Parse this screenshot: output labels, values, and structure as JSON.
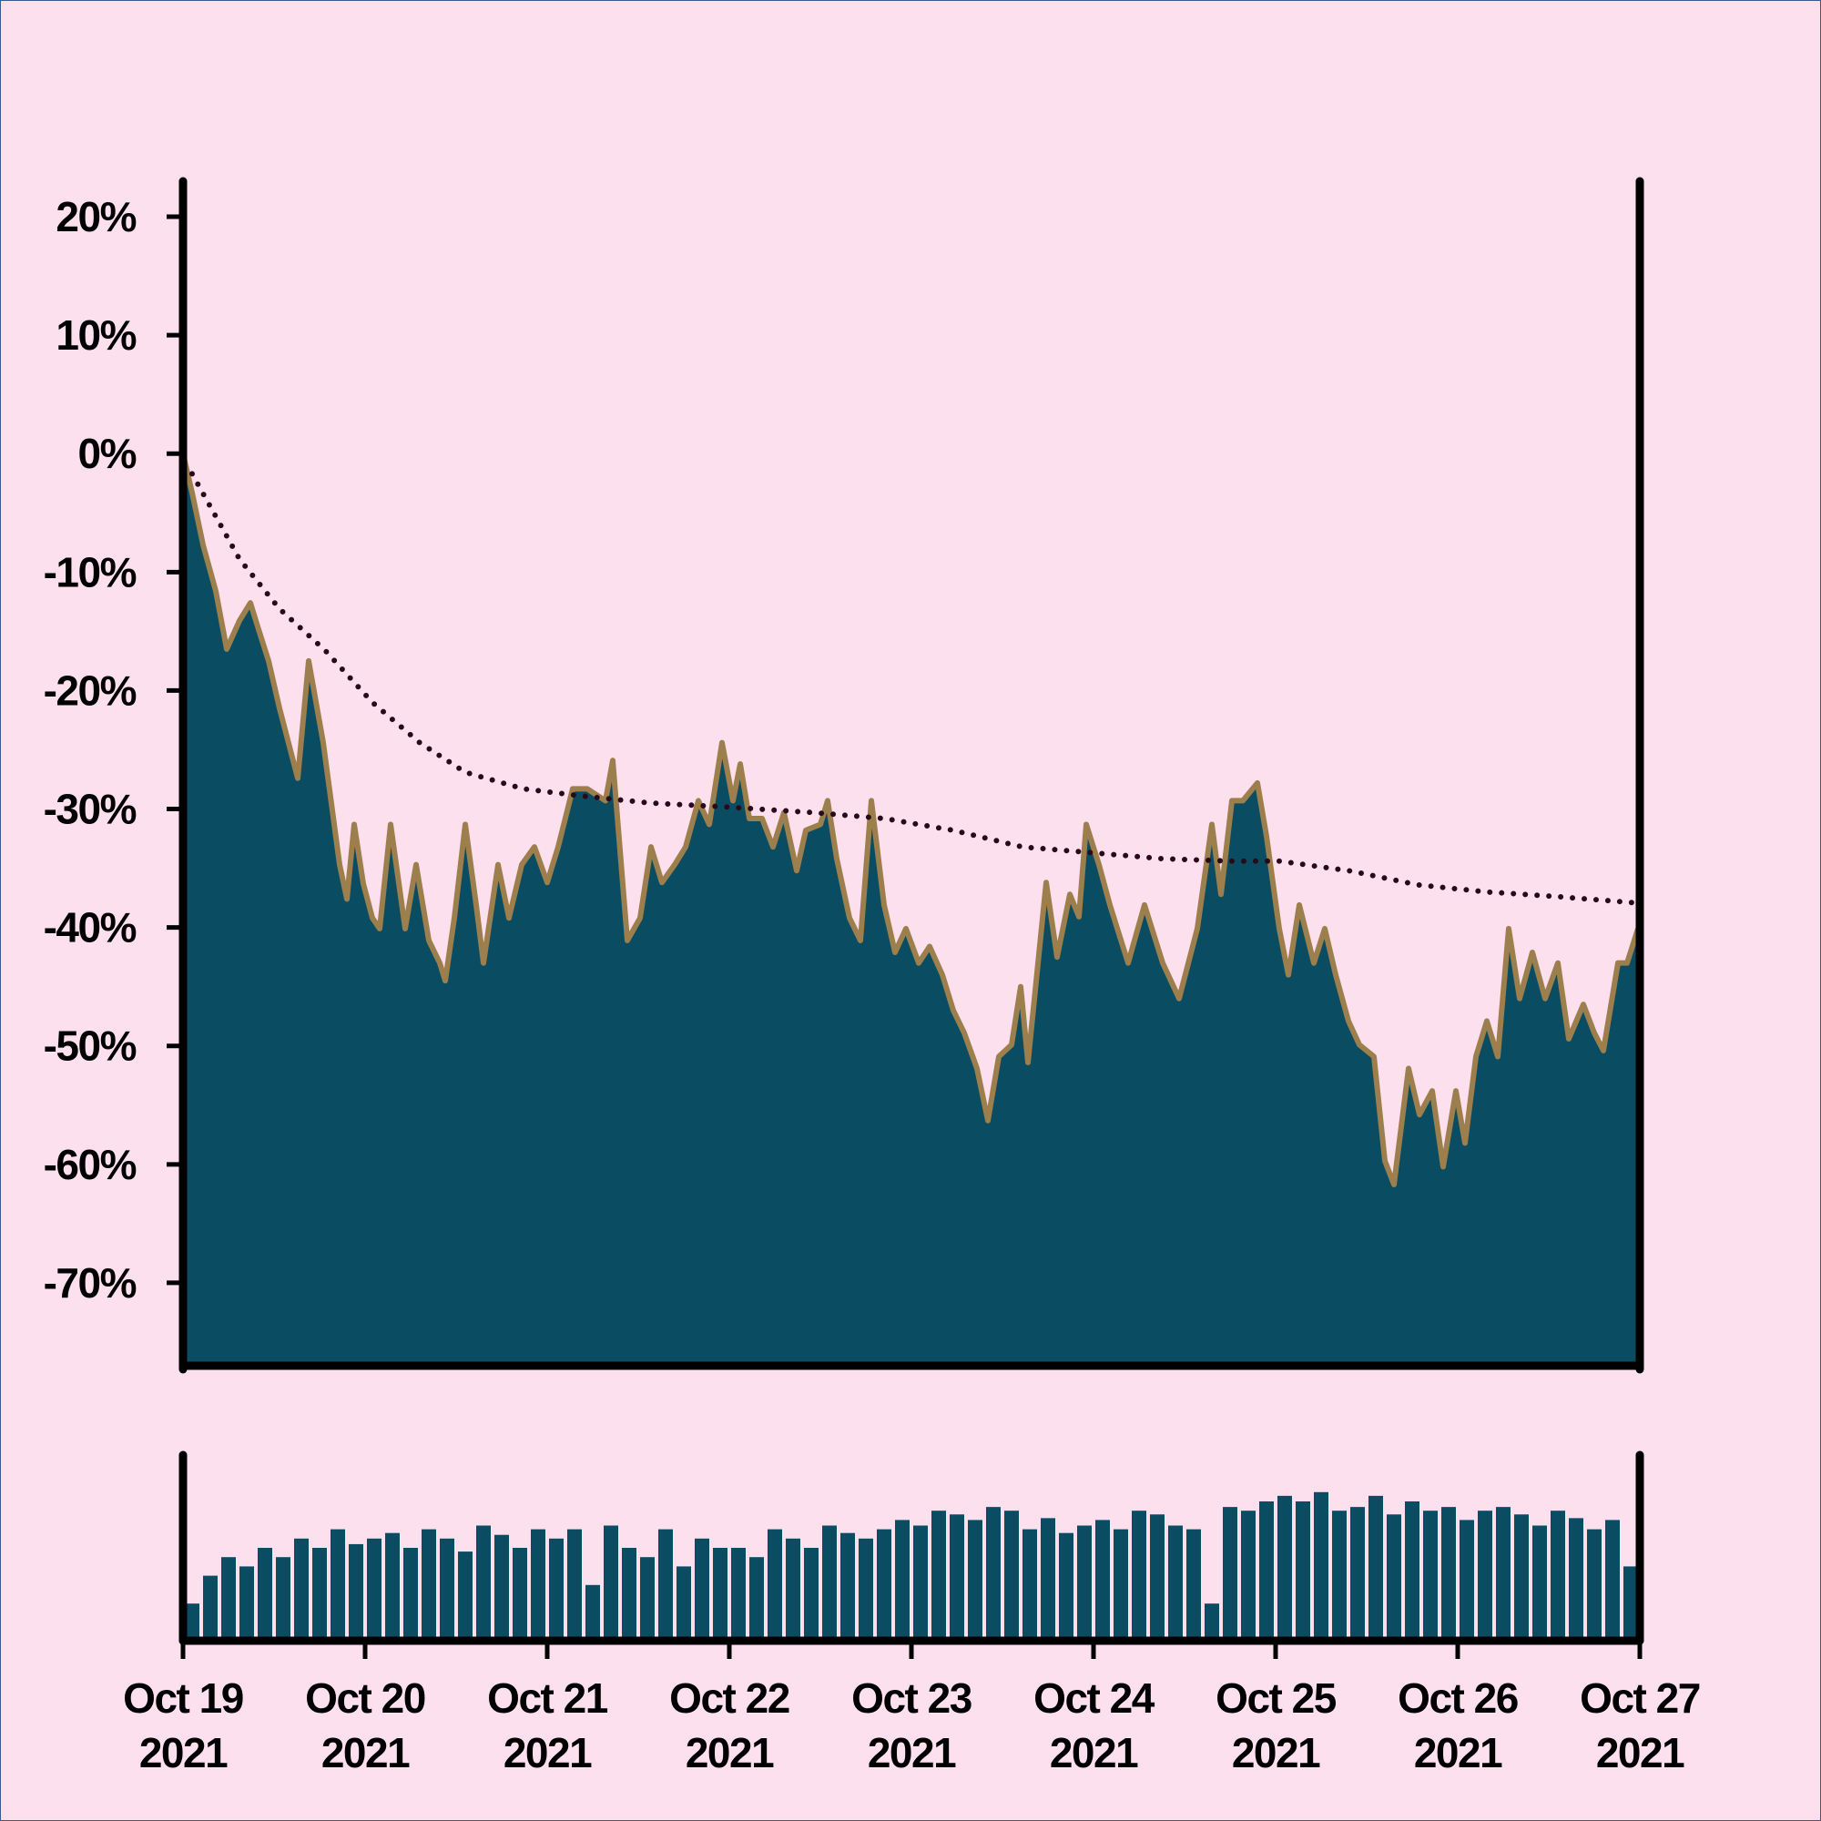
{
  "chart_data": [
    {
      "type": "area",
      "xlim": [
        0,
        8
      ],
      "ylim": [
        -77,
        23
      ],
      "yticks": [
        {
          "value": -70,
          "label": "-70%"
        },
        {
          "value": -60,
          "label": "-60%"
        },
        {
          "value": -50,
          "label": "-50%"
        },
        {
          "value": -40,
          "label": "-40%"
        },
        {
          "value": -30,
          "label": "-30%"
        },
        {
          "value": -20,
          "label": "-20%"
        },
        {
          "value": -10,
          "label": "-10%"
        },
        {
          "value": 0,
          "label": "0%"
        },
        {
          "value": 10,
          "label": "10%"
        },
        {
          "value": 20,
          "label": "20%"
        }
      ],
      "series": [
        {
          "type": "area",
          "color": "#0a4d63",
          "line_color": "#9c7f4c",
          "x": [
            0,
            0.05,
            0.11,
            0.18,
            0.24,
            0.31,
            0.37,
            0.41,
            0.47,
            0.53,
            0.63,
            0.69,
            0.77,
            0.86,
            0.9,
            0.94,
            0.99,
            1.04,
            1.08,
            1.14,
            1.22,
            1.28,
            1.35,
            1.41,
            1.44,
            1.49,
            1.55,
            1.61,
            1.65,
            1.73,
            1.79,
            1.86,
            1.93,
            2.0,
            2.06,
            2.14,
            2.22,
            2.32,
            2.36,
            2.44,
            2.51,
            2.57,
            2.63,
            2.7,
            2.76,
            2.83,
            2.89,
            2.96,
            3.02,
            3.06,
            3.11,
            3.18,
            3.24,
            3.3,
            3.37,
            3.42,
            3.5,
            3.54,
            3.59,
            3.66,
            3.72,
            3.78,
            3.85,
            3.91,
            3.97,
            4.04,
            4.1,
            4.17,
            4.23,
            4.29,
            4.36,
            4.42,
            4.48,
            4.55,
            4.6,
            4.64,
            4.74,
            4.8,
            4.87,
            4.92,
            4.96,
            5.03,
            5.09,
            5.19,
            5.28,
            5.38,
            5.47,
            5.57,
            5.65,
            5.7,
            5.76,
            5.82,
            5.9,
            5.95,
            6.02,
            6.07,
            6.13,
            6.21,
            6.27,
            6.33,
            6.4,
            6.46,
            6.54,
            6.6,
            6.65,
            6.73,
            6.79,
            6.86,
            6.92,
            6.99,
            7.04,
            7.1,
            7.16,
            7.22,
            7.28,
            7.34,
            7.41,
            7.48,
            7.55,
            7.61,
            7.69,
            7.75,
            7.8,
            7.88,
            7.93,
            7.99
          ],
          "values": [
            0,
            -3.3,
            -7.7,
            -11.6,
            -16.5,
            -14.1,
            -12.6,
            -14.6,
            -17.5,
            -21.5,
            -27.4,
            -17.5,
            -24.4,
            -34.7,
            -37.6,
            -31.3,
            -36.3,
            -39.2,
            -40.1,
            -31.3,
            -40.1,
            -34.7,
            -41.1,
            -43,
            -44.5,
            -39.2,
            -31.3,
            -38.1,
            -43,
            -34.7,
            -39.2,
            -34.7,
            -33.2,
            -36.2,
            -33.2,
            -28.3,
            -28.3,
            -29.3,
            -25.9,
            -41.1,
            -39.2,
            -33.2,
            -36.2,
            -34.7,
            -33.2,
            -29.3,
            -31.3,
            -24.4,
            -29.3,
            -26.2,
            -30.8,
            -30.8,
            -33.2,
            -30.3,
            -35.2,
            -31.8,
            -31.3,
            -29.3,
            -34.2,
            -39.2,
            -41.1,
            -29.3,
            -38.1,
            -42.1,
            -40.1,
            -43,
            -41.6,
            -44,
            -47,
            -48.9,
            -51.9,
            -56.3,
            -50.9,
            -49.9,
            -45,
            -51.4,
            -36.2,
            -42.5,
            -37.2,
            -39.1,
            -31.3,
            -34.7,
            -38.1,
            -43,
            -38.1,
            -43,
            -46,
            -40.1,
            -31.3,
            -37.2,
            -29.3,
            -29.3,
            -27.8,
            -32.3,
            -40.1,
            -44,
            -38.1,
            -43,
            -40.1,
            -44,
            -47.9,
            -49.9,
            -50.9,
            -59.7,
            -61.7,
            -51.9,
            -55.8,
            -53.8,
            -60.2,
            -53.8,
            -58.2,
            -50.9,
            -47.9,
            -50.9,
            -40.1,
            -46,
            -42.1,
            -46,
            -43,
            -49.4,
            -46.5,
            -48.9,
            -50.4,
            -43,
            -43,
            -40.1
          ]
        },
        {
          "type": "dotted-line",
          "color": "#2a0a1a",
          "x": [
            0.05,
            0.18,
            0.31,
            0.53,
            0.78,
            1.04,
            1.3,
            1.55,
            1.87,
            2.19,
            2.57,
            2.95,
            3.46,
            3.85,
            4.23,
            4.61,
            5.0,
            5.38,
            5.76,
            6.02,
            6.4,
            6.78,
            7.16,
            7.55,
            7.96
          ],
          "values": [
            -1.7,
            -5.3,
            -8.9,
            -13.1,
            -16.6,
            -21,
            -24.4,
            -26.9,
            -28.3,
            -28.9,
            -29.5,
            -29.8,
            -30.3,
            -30.8,
            -31.8,
            -33.2,
            -33.7,
            -34.2,
            -34.4,
            -34.4,
            -35.2,
            -36.4,
            -37,
            -37.4,
            -37.9
          ]
        }
      ]
    },
    {
      "type": "bar",
      "color": "#0a4d63",
      "xlim": [
        0,
        8
      ],
      "ylim": [
        0,
        100
      ],
      "xticks": [
        {
          "value": 0,
          "label": "Oct 19\n2021"
        },
        {
          "value": 1,
          "label": "Oct 20\n2021"
        },
        {
          "value": 2,
          "label": "Oct 21\n2021"
        },
        {
          "value": 3,
          "label": "Oct 22\n2021"
        },
        {
          "value": 4,
          "label": "Oct 23\n2021"
        },
        {
          "value": 5,
          "label": "Oct 24\n2021"
        },
        {
          "value": 6,
          "label": "Oct 25\n2021"
        },
        {
          "value": 7,
          "label": "Oct 26\n2021"
        },
        {
          "value": 8,
          "label": "Oct 27\n2021"
        }
      ],
      "x": [
        0.05,
        0.15,
        0.25,
        0.35,
        0.45,
        0.55,
        0.65,
        0.75,
        0.85,
        0.95,
        1.05,
        1.15,
        1.25,
        1.35,
        1.45,
        1.55,
        1.65,
        1.75,
        1.85,
        1.95,
        2.05,
        2.15,
        2.25,
        2.35,
        2.45,
        2.55,
        2.65,
        2.75,
        2.85,
        2.95,
        3.05,
        3.15,
        3.25,
        3.35,
        3.45,
        3.55,
        3.65,
        3.75,
        3.85,
        3.95,
        4.05,
        4.15,
        4.25,
        4.35,
        4.45,
        4.55,
        4.65,
        4.75,
        4.85,
        4.95,
        5.05,
        5.15,
        5.25,
        5.35,
        5.45,
        5.55,
        5.65,
        5.75,
        5.85,
        5.95,
        6.05,
        6.15,
        6.25,
        6.35,
        6.45,
        6.55,
        6.65,
        6.75,
        6.85,
        6.95,
        7.05,
        7.15,
        7.25,
        7.35,
        7.45,
        7.55,
        7.65,
        7.75,
        7.85,
        7.95
      ],
      "values": [
        20,
        35,
        45,
        40,
        50,
        45,
        55,
        50,
        60,
        52,
        55,
        58,
        50,
        60,
        55,
        48,
        62,
        57,
        50,
        60,
        55,
        60,
        30,
        62,
        50,
        45,
        60,
        40,
        55,
        50,
        50,
        45,
        60,
        55,
        50,
        62,
        58,
        55,
        60,
        65,
        62,
        70,
        68,
        65,
        72,
        70,
        60,
        66,
        58,
        62,
        65,
        60,
        70,
        68,
        62,
        60,
        20,
        72,
        70,
        75,
        78,
        75,
        80,
        70,
        72,
        78,
        68,
        75,
        70,
        72,
        65,
        70,
        72,
        68,
        62,
        70,
        66,
        60,
        65,
        40
      ]
    }
  ]
}
